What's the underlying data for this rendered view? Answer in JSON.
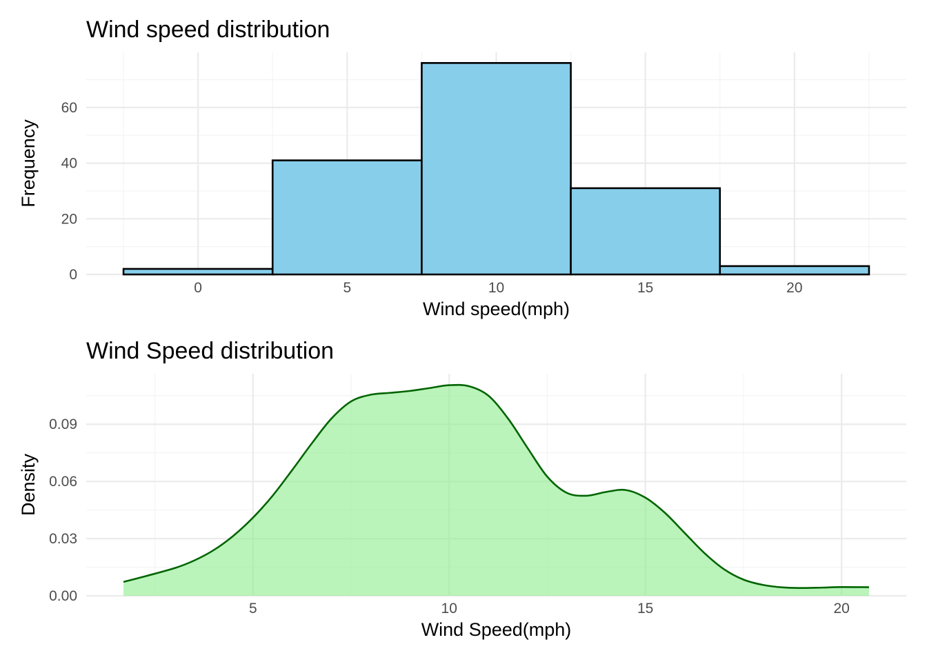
{
  "chart_data": [
    {
      "type": "bar",
      "title": "Wind speed distribution",
      "xlabel": "Wind speed(mph)",
      "ylabel": "Frequency",
      "bins": [
        {
          "x_start": -2.5,
          "x_end": 2.5,
          "value": 2
        },
        {
          "x_start": 2.5,
          "x_end": 7.5,
          "value": 41
        },
        {
          "x_start": 7.5,
          "x_end": 12.5,
          "value": 76
        },
        {
          "x_start": 12.5,
          "x_end": 17.5,
          "value": 31
        },
        {
          "x_start": 17.5,
          "x_end": 22.5,
          "value": 3
        }
      ],
      "x_ticks": [
        0,
        5,
        10,
        15,
        20
      ],
      "y_ticks": [
        0,
        20,
        40,
        60
      ],
      "xlim": [
        -3.75,
        23.75
      ],
      "ylim": [
        0,
        79.8
      ],
      "grid": true,
      "fill_color": "#87CEEB",
      "edge_color": "#000000"
    },
    {
      "type": "area",
      "title": "Wind Speed distribution",
      "xlabel": "Wind Speed(mph)",
      "ylabel": "Density",
      "x": [
        1.7,
        2.3,
        3.0,
        3.5,
        4.0,
        4.5,
        5.0,
        5.5,
        6.0,
        6.5,
        7.0,
        7.5,
        8.0,
        8.5,
        9.0,
        9.5,
        10.0,
        10.5,
        11.0,
        11.5,
        12.0,
        12.5,
        13.0,
        13.5,
        14.0,
        14.5,
        15.0,
        15.5,
        16.0,
        16.5,
        17.0,
        17.5,
        18.0,
        18.5,
        19.0,
        19.5,
        20.0,
        20.7
      ],
      "y": [
        0.0073,
        0.0105,
        0.0145,
        0.0185,
        0.024,
        0.0315,
        0.041,
        0.0525,
        0.066,
        0.08,
        0.093,
        0.102,
        0.1055,
        0.1065,
        0.1075,
        0.109,
        0.1105,
        0.11,
        0.105,
        0.093,
        0.0775,
        0.0625,
        0.054,
        0.0525,
        0.0545,
        0.0555,
        0.0515,
        0.0435,
        0.033,
        0.0225,
        0.014,
        0.0085,
        0.0057,
        0.0044,
        0.0041,
        0.0043,
        0.0046,
        0.0045
      ],
      "x_ticks": [
        5,
        10,
        15,
        20
      ],
      "y_ticks": [
        0.0,
        0.03,
        0.06,
        0.09
      ],
      "y_tick_labels": [
        "0.00",
        "0.03",
        "0.06",
        "0.09"
      ],
      "xlim": [
        0.75,
        21.65
      ],
      "ylim": [
        0,
        0.1165
      ],
      "grid": true,
      "fill_color": "#90EE90",
      "line_color": "#006400"
    }
  ]
}
